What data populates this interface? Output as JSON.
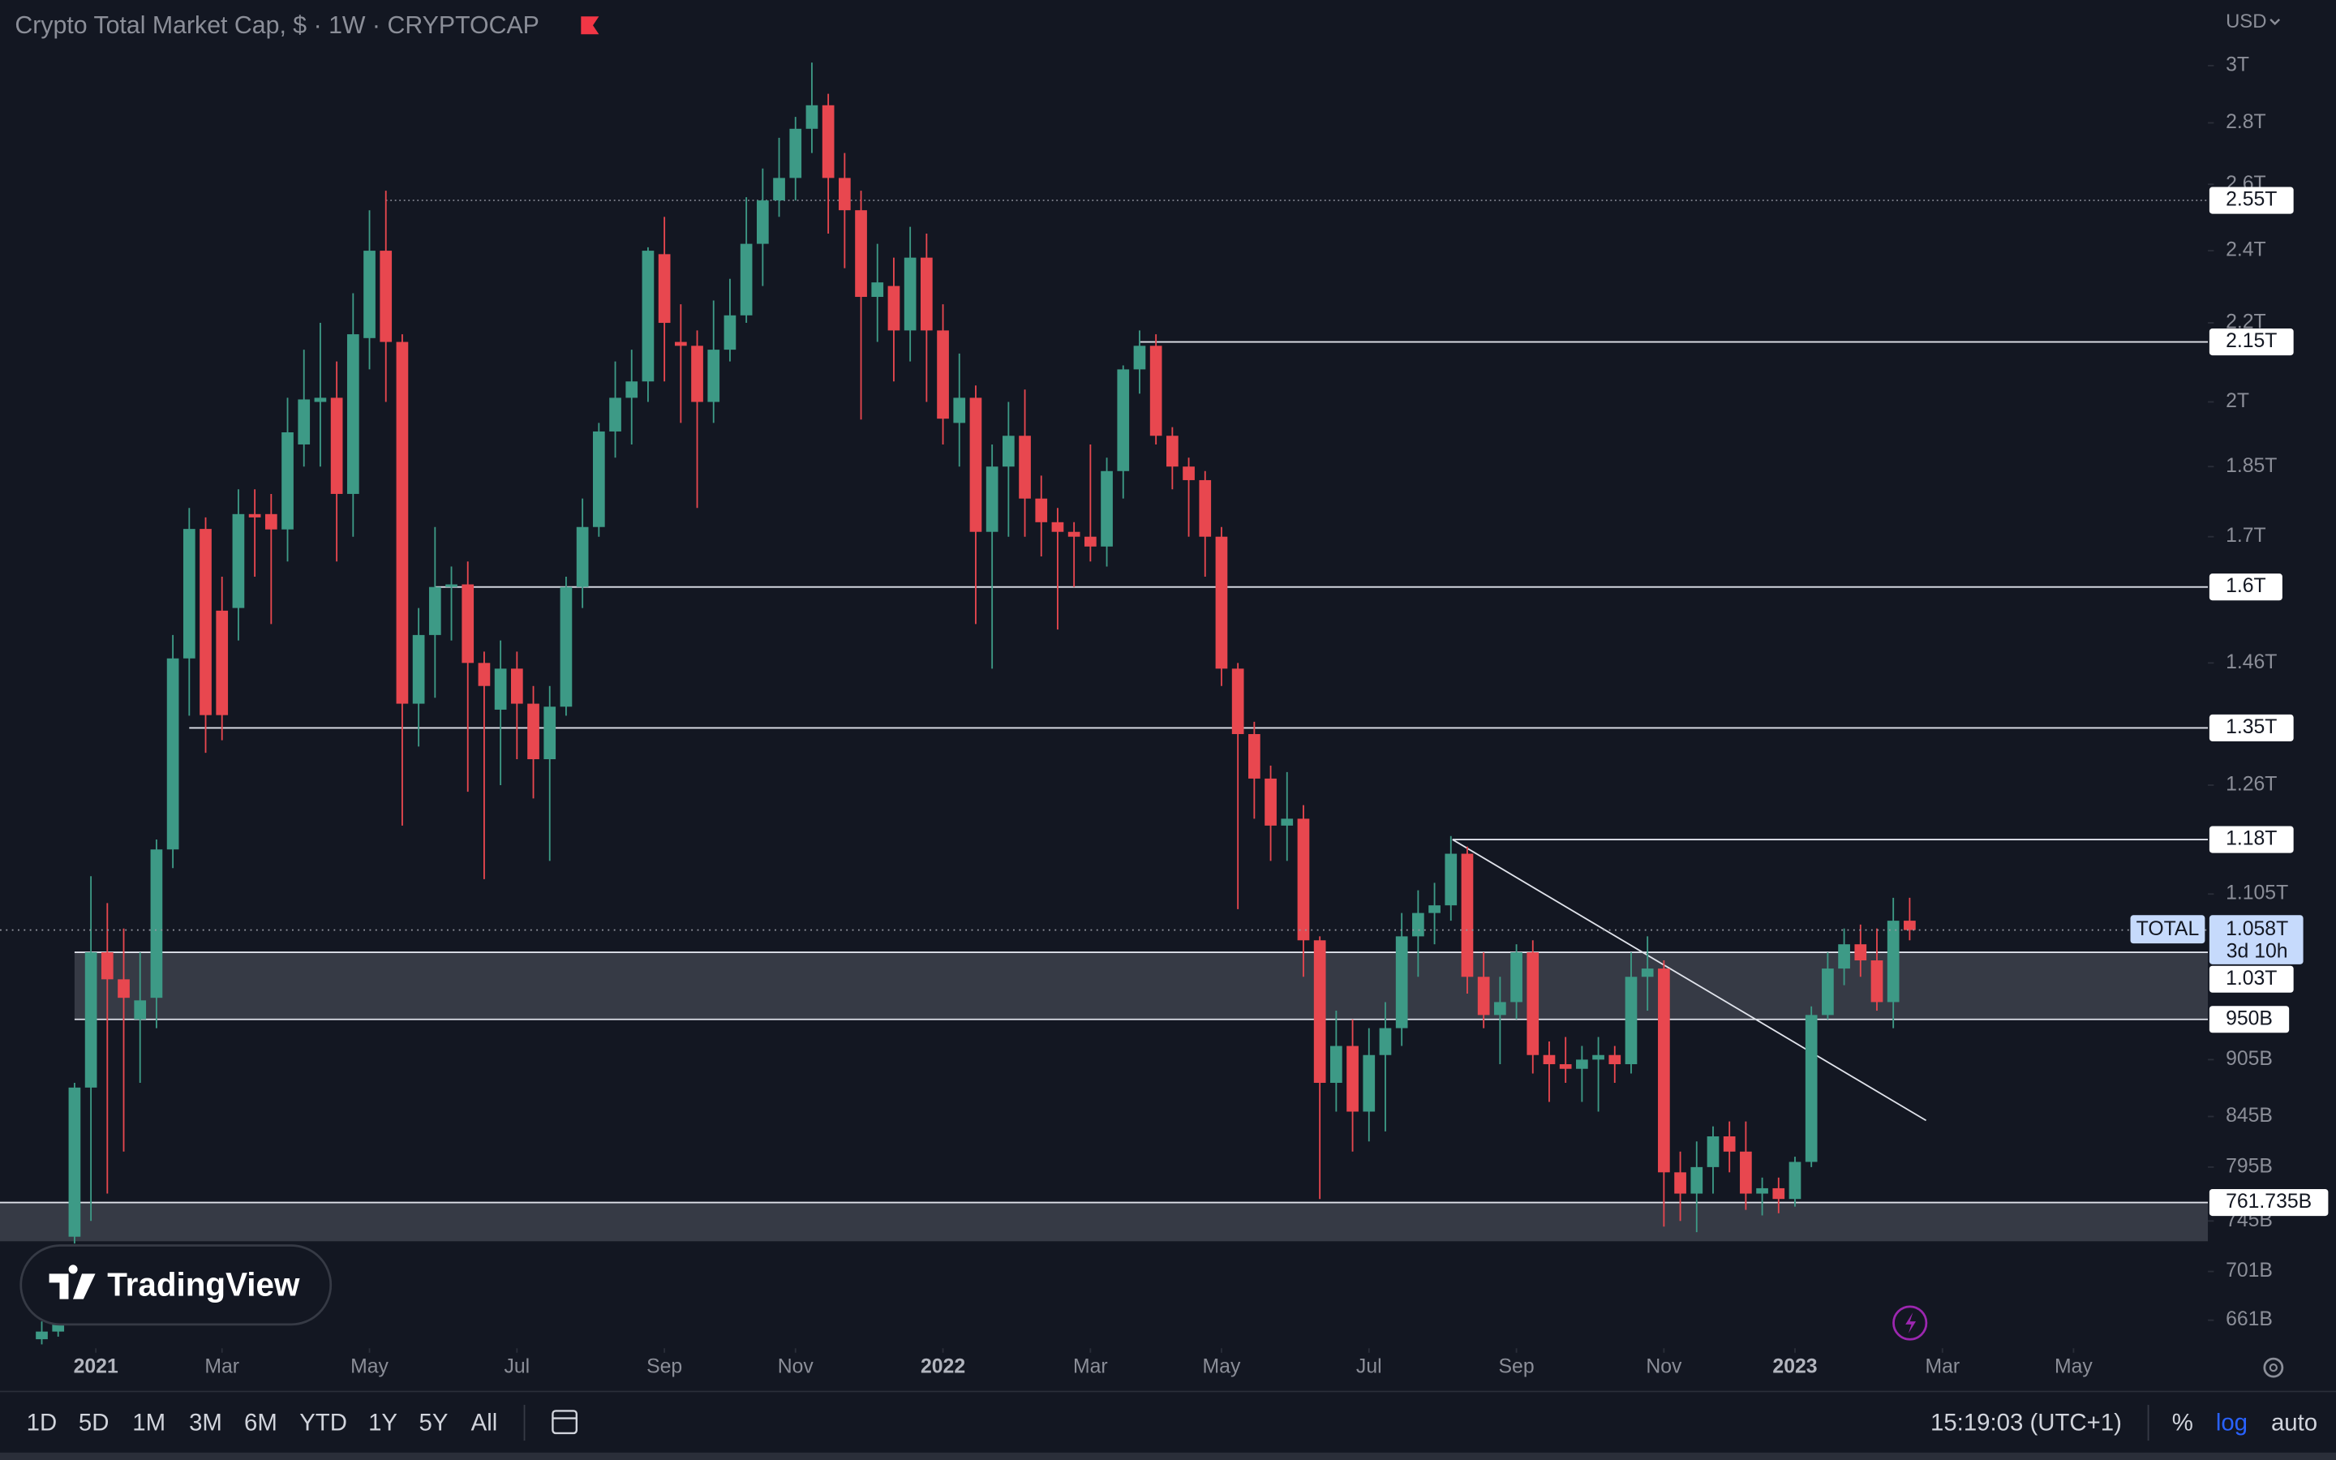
{
  "chart_data": {
    "type": "candlestick",
    "title": "Crypto Total Market Cap, $ · 1W · CRYPTOCAP",
    "currency": "USD",
    "log_scale": true,
    "grid": false,
    "xlim": [
      -2.55,
      132.2
    ],
    "ylim": [
      639,
      3247
    ],
    "xticks": [
      {
        "value": 3.3,
        "label": "2021"
      },
      {
        "value": 11,
        "label": "Mar"
      },
      {
        "value": 20,
        "label": "May"
      },
      {
        "value": 29,
        "label": "Jul"
      },
      {
        "value": 38,
        "label": "Sep"
      },
      {
        "value": 46,
        "label": "Nov"
      },
      {
        "value": 55,
        "label": "2022"
      },
      {
        "value": 64,
        "label": "Mar"
      },
      {
        "value": 72,
        "label": "May"
      },
      {
        "value": 81,
        "label": "Jul"
      },
      {
        "value": 90,
        "label": "Sep"
      },
      {
        "value": 99,
        "label": "Nov"
      },
      {
        "value": 107,
        "label": "2023"
      },
      {
        "value": 116,
        "label": "Mar"
      },
      {
        "value": 124,
        "label": "May"
      }
    ],
    "yticks": [
      {
        "value": 3000,
        "label": "3T"
      },
      {
        "value": 2800,
        "label": "2.8T"
      },
      {
        "value": 2600,
        "label": "2.6T"
      },
      {
        "value": 2400,
        "label": "2.4T"
      },
      {
        "value": 2200,
        "label": "2.2T"
      },
      {
        "value": 2000,
        "label": "2T"
      },
      {
        "value": 1850,
        "label": "1.85T"
      },
      {
        "value": 1700,
        "label": "1.7T"
      },
      {
        "value": 1460,
        "label": "1.46T"
      },
      {
        "value": 1260,
        "label": "1.26T"
      },
      {
        "value": 1105,
        "label": "1.105T"
      },
      {
        "value": 905,
        "label": "905B"
      },
      {
        "value": 845,
        "label": "845B"
      },
      {
        "value": 795,
        "label": "795B"
      },
      {
        "value": 745,
        "label": "745B"
      },
      {
        "value": 701,
        "label": "701B"
      },
      {
        "value": 661,
        "label": "661B"
      }
    ],
    "series": [
      {
        "name": "TOTAL",
        "up_color": "#3d9a86",
        "down_color": "#e8474f",
        "open": [
          646,
          652,
          731,
          875,
          1030,
          997,
          950,
          975,
          1166,
          1468,
          1716,
          1555,
          1560,
          1747,
          1747,
          1715,
          1900,
          2000,
          2010,
          1790,
          2160,
          2400,
          2150,
          1390,
          1510,
          1600,
          1605,
          1460,
          1380,
          1450,
          1390,
          1300,
          1385,
          1600,
          1720,
          1930,
          2010,
          2050,
          2390,
          2150,
          2140,
          2000,
          2130,
          2220,
          2420,
          2550,
          2620,
          2780,
          2860,
          2620,
          2520,
          2270,
          2300,
          2180,
          2380,
          2180,
          1950,
          2010,
          1710,
          1850,
          1920,
          1780,
          1730,
          1710,
          1700,
          1680,
          1840,
          2080,
          2140,
          1920,
          1850,
          1820,
          1700,
          1450,
          1340,
          1270,
          1200,
          1210,
          1045,
          880,
          920,
          850,
          910,
          940,
          1050,
          1080,
          1090,
          1160,
          1000,
          955,
          970,
          1030,
          910,
          900,
          895,
          905,
          910,
          900,
          1000,
          1010,
          790,
          770,
          795,
          825,
          810,
          770,
          775,
          765,
          800,
          955,
          1010,
          1040,
          1020,
          970,
          1070
        ],
        "high": [
          660,
          668,
          880,
          1129,
          1093,
          1060,
          1030,
          1180,
          1510,
          1760,
          1740,
          1620,
          1800,
          1800,
          1790,
          2010,
          2130,
          2200,
          2100,
          2280,
          2520,
          2580,
          2170,
          1560,
          1720,
          1640,
          1650,
          1480,
          1500,
          1480,
          1420,
          1420,
          1620,
          1780,
          1950,
          2100,
          2130,
          2410,
          2500,
          2250,
          2180,
          2260,
          2320,
          2560,
          2650,
          2750,
          2820,
          3011,
          2900,
          2700,
          2580,
          2420,
          2380,
          2470,
          2450,
          2250,
          2120,
          2040,
          1900,
          2000,
          2030,
          1830,
          1760,
          1730,
          1900,
          1870,
          2090,
          2180,
          2170,
          1940,
          1870,
          1840,
          1720,
          1460,
          1360,
          1290,
          1280,
          1230,
          1050,
          960,
          950,
          940,
          970,
          1080,
          1110,
          1120,
          1185,
          1170,
          1030,
          1000,
          1040,
          1045,
          925,
          930,
          920,
          930,
          920,
          1030,
          1050,
          1020,
          810,
          820,
          835,
          840,
          840,
          785,
          785,
          805,
          965,
          1030,
          1060,
          1065,
          1060,
          1100,
          1100
        ],
        "low": [
          642,
          648,
          725,
          745,
          770,
          810,
          880,
          940,
          1140,
          1370,
          1310,
          1330,
          1500,
          1620,
          1530,
          1650,
          1850,
          1850,
          1650,
          1700,
          2080,
          2000,
          1200,
          1320,
          1400,
          1500,
          1250,
          1125,
          1260,
          1300,
          1240,
          1150,
          1370,
          1560,
          1700,
          1870,
          1900,
          2000,
          2050,
          1950,
          1760,
          1950,
          2100,
          2200,
          2300,
          2500,
          2550,
          2700,
          2450,
          2350,
          1958,
          2150,
          2050,
          2100,
          2000,
          1900,
          1850,
          1530,
          1450,
          1700,
          1700,
          1660,
          1520,
          1600,
          1650,
          1640,
          1780,
          2020,
          1900,
          1800,
          1700,
          1620,
          1420,
          1085,
          1210,
          1150,
          1150,
          1000,
          765,
          850,
          810,
          820,
          830,
          920,
          1000,
          1040,
          1070,
          980,
          940,
          900,
          950,
          890,
          860,
          880,
          860,
          850,
          880,
          890,
          960,
          740,
          745,
          735,
          770,
          790,
          755,
          750,
          752,
          758,
          795,
          950,
          990,
          1000,
          960,
          940,
          1045
        ],
        "close": [
          652,
          662,
          875,
          1030,
          997,
          975,
          972,
          1166,
          1468,
          1716,
          1371,
          1371,
          1747,
          1740,
          1715,
          1928,
          2006,
          2010,
          1790,
          2170,
          2400,
          2150,
          1390,
          1510,
          1600,
          1605,
          1460,
          1420,
          1450,
          1390,
          1300,
          1385,
          1600,
          1720,
          1930,
          2010,
          2050,
          2400,
          2200,
          2140,
          2000,
          2130,
          2220,
          2420,
          2550,
          2620,
          2780,
          2860,
          2620,
          2520,
          2270,
          2310,
          2180,
          2380,
          2180,
          1960,
          2010,
          1710,
          1850,
          1920,
          1780,
          1730,
          1710,
          1700,
          1680,
          1840,
          2080,
          2140,
          1920,
          1850,
          1820,
          1700,
          1450,
          1340,
          1270,
          1200,
          1210,
          1045,
          880,
          920,
          850,
          910,
          940,
          1050,
          1080,
          1090,
          1160,
          1000,
          955,
          970,
          1030,
          910,
          900,
          895,
          905,
          910,
          900,
          1000,
          1010,
          790,
          770,
          795,
          825,
          810,
          770,
          775,
          765,
          800,
          955,
          1010,
          1040,
          1020,
          970,
          1070,
          1058
        ]
      }
    ],
    "levels": [
      {
        "value": 2550,
        "label": "2.55T",
        "start": 21,
        "style": "dotted"
      },
      {
        "value": 2150,
        "label": "2.15T",
        "start": 67,
        "style": "solid"
      },
      {
        "value": 1600,
        "label": "1.6T",
        "start": 24,
        "style": "solid"
      },
      {
        "value": 1350,
        "label": "1.35T",
        "start": 9,
        "style": "solid"
      },
      {
        "value": 1180,
        "label": "1.18T",
        "start": 86.1,
        "style": "solid"
      },
      {
        "value": 1030,
        "label": "1.03T",
        "start": 2,
        "style": "solid"
      },
      {
        "value": 950,
        "label": "950B",
        "start": 2,
        "style": "solid"
      },
      {
        "value": 761.735,
        "label": "761.735B",
        "start": -2.55,
        "style": "solid"
      }
    ],
    "zones": [
      {
        "low": 950,
        "high": 1030,
        "start": 2
      },
      {
        "low": 727,
        "high": 761.735,
        "start": -2.55
      }
    ],
    "trendline": {
      "x": [
        86.1,
        115
      ],
      "y": [
        1180,
        841
      ]
    },
    "last_price": {
      "value": 1058,
      "label": "1.058T",
      "countdown": "3d 10h"
    }
  },
  "ui": {
    "logo": "TradingView",
    "intervals": [
      "1D",
      "5D",
      "1M",
      "3M",
      "6M",
      "YTD",
      "1Y",
      "5Y",
      "All"
    ],
    "clock": "15:19:03 (UTC+1)",
    "percent": "%",
    "log": "log",
    "auto": "auto"
  }
}
